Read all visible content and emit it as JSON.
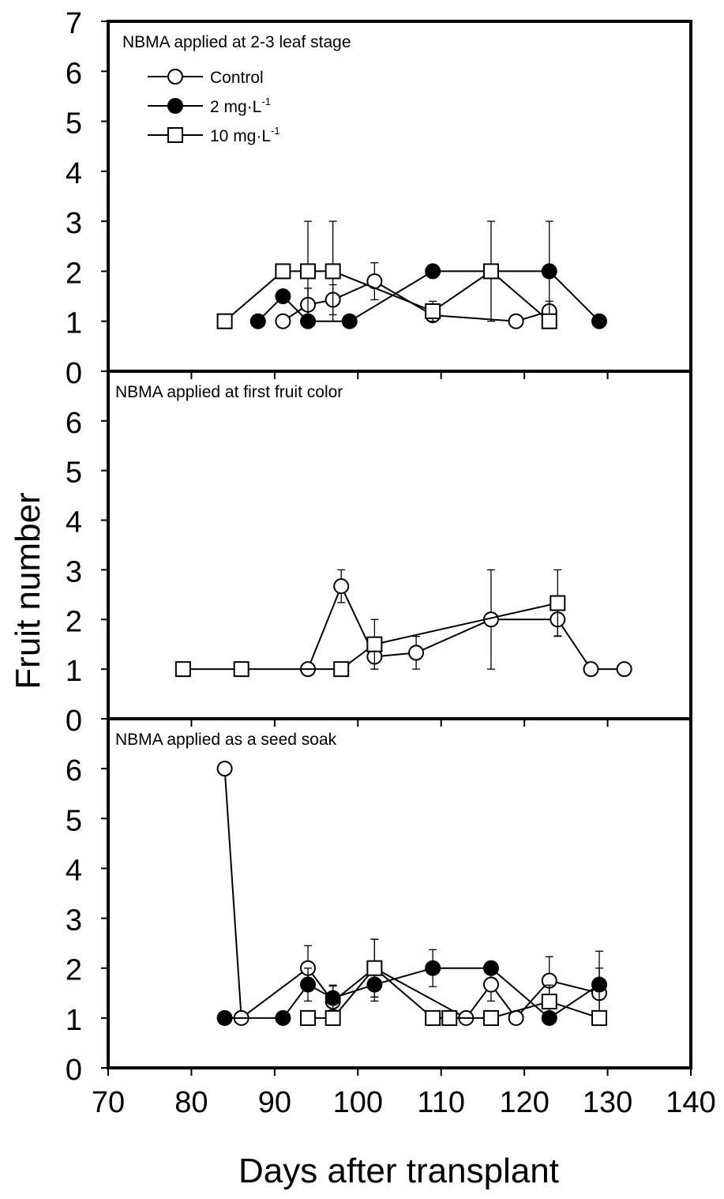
{
  "figure": {
    "ylabel": "Fruit number",
    "xlabel": "Days after transplant",
    "x_ticks": [
      "70",
      "80",
      "90",
      "100",
      "110",
      "120",
      "130",
      "140"
    ],
    "legend": [
      {
        "label": "Control",
        "marker": "open-circle"
      },
      {
        "label": "2 mg·L",
        "sup": "-1",
        "marker": "filled-circle"
      },
      {
        "label": "10 mg·L",
        "sup": "-1",
        "marker": "open-square"
      }
    ]
  },
  "chart_data": [
    {
      "type": "line",
      "title": "NBMA applied at 2-3 leaf stage",
      "xlim": [
        70,
        140
      ],
      "ylim": [
        0,
        7
      ],
      "y_ticks": [
        "0",
        "1",
        "2",
        "3",
        "4",
        "5",
        "6",
        "7"
      ],
      "legend_position": "top-left",
      "series": [
        {
          "name": "Control",
          "marker": "open-circle",
          "points": [
            {
              "x": 91,
              "y": 1
            },
            {
              "x": 94,
              "y": 1.33,
              "err": 0.33
            },
            {
              "x": 97,
              "y": 1.43,
              "err": 0.3
            },
            {
              "x": 102,
              "y": 1.8,
              "err": 0.37
            },
            {
              "x": 109,
              "y": 1.12,
              "err": 0.12
            },
            {
              "x": 119,
              "y": 1
            },
            {
              "x": 123,
              "y": 1.2,
              "err": 0.2
            }
          ]
        },
        {
          "name": "2 mg·L-1",
          "marker": "filled-circle",
          "points": [
            {
              "x": 88,
              "y": 1
            },
            {
              "x": 91,
              "y": 1.5
            },
            {
              "x": 94,
              "y": 1
            },
            {
              "x": 99,
              "y": 1
            },
            {
              "x": 109,
              "y": 2
            },
            {
              "x": 116,
              "y": 2
            },
            {
              "x": 123,
              "y": 2,
              "err": 1
            },
            {
              "x": 129,
              "y": 1
            }
          ]
        },
        {
          "name": "10 mg·L-1",
          "marker": "open-square",
          "points": [
            {
              "x": 84,
              "y": 1
            },
            {
              "x": 91,
              "y": 2
            },
            {
              "x": 94,
              "y": 2,
              "err": 1
            },
            {
              "x": 97,
              "y": 2,
              "err": 1
            },
            {
              "x": 109,
              "y": 1.2,
              "err": 0.2
            },
            {
              "x": 116,
              "y": 2,
              "err": 1
            },
            {
              "x": 123,
              "y": 1
            }
          ]
        }
      ]
    },
    {
      "type": "line",
      "title": "NBMA applied at first fruit color",
      "xlim": [
        70,
        140
      ],
      "ylim": [
        0,
        7
      ],
      "y_ticks": [
        "0",
        "1",
        "2",
        "3",
        "4",
        "5",
        "6",
        ""
      ],
      "series": [
        {
          "name": "Control",
          "marker": "open-circle",
          "points": [
            {
              "x": 94,
              "y": 1
            },
            {
              "x": 98,
              "y": 2.67,
              "err": 0.33
            },
            {
              "x": 102,
              "y": 1.25,
              "err": 0.25
            },
            {
              "x": 107,
              "y": 1.33,
              "err": 0.33
            },
            {
              "x": 116,
              "y": 2,
              "err": 1
            },
            {
              "x": 124,
              "y": 2,
              "err": 0.33
            },
            {
              "x": 128,
              "y": 1
            },
            {
              "x": 132,
              "y": 1
            }
          ]
        },
        {
          "name": "10 mg·L-1",
          "marker": "open-square",
          "points": [
            {
              "x": 79,
              "y": 1
            },
            {
              "x": 86,
              "y": 1
            },
            {
              "x": 98,
              "y": 1
            },
            {
              "x": 102,
              "y": 1.5,
              "err": 0.5
            },
            {
              "x": 124,
              "y": 2.33,
              "err": 0.67
            }
          ]
        }
      ]
    },
    {
      "type": "line",
      "title": "NBMA applied as a seed soak",
      "xlim": [
        70,
        140
      ],
      "ylim": [
        0,
        7
      ],
      "y_ticks": [
        "0",
        "1",
        "2",
        "3",
        "4",
        "5",
        "6",
        ""
      ],
      "series": [
        {
          "name": "Control",
          "marker": "open-circle",
          "points": [
            {
              "x": 84,
              "y": 6
            },
            {
              "x": 86,
              "y": 1
            },
            {
              "x": 94,
              "y": 2,
              "err": 0.45
            },
            {
              "x": 97,
              "y": 1.33,
              "err": 0.33
            },
            {
              "x": 102,
              "y": 2,
              "err": 0.58
            },
            {
              "x": 113,
              "y": 1
            },
            {
              "x": 116,
              "y": 1.67,
              "err": 0.33
            },
            {
              "x": 119,
              "y": 1
            },
            {
              "x": 123,
              "y": 1.75,
              "err": 0.48
            },
            {
              "x": 129,
              "y": 1.5,
              "err": 0.5
            }
          ]
        },
        {
          "name": "2 mg·L-1",
          "marker": "filled-circle",
          "points": [
            {
              "x": 84,
              "y": 1
            },
            {
              "x": 91,
              "y": 1
            },
            {
              "x": 94,
              "y": 1.67,
              "err": 0.33
            },
            {
              "x": 97,
              "y": 1.4,
              "err": 0.24
            },
            {
              "x": 102,
              "y": 1.67,
              "err": 0.33
            },
            {
              "x": 109,
              "y": 2,
              "err": 0.37
            },
            {
              "x": 116,
              "y": 2
            },
            {
              "x": 123,
              "y": 1
            },
            {
              "x": 129,
              "y": 1.67,
              "err": 0.67
            }
          ]
        },
        {
          "name": "10 mg·L-1",
          "marker": "open-square",
          "points": [
            {
              "x": 94,
              "y": 1
            },
            {
              "x": 97,
              "y": 1
            },
            {
              "x": 102,
              "y": 2,
              "err": 0.58
            },
            {
              "x": 109,
              "y": 1
            },
            {
              "x": 111,
              "y": 1
            },
            {
              "x": 116,
              "y": 1
            },
            {
              "x": 123,
              "y": 1.33,
              "err": 0.33
            },
            {
              "x": 129,
              "y": 1
            }
          ]
        }
      ]
    }
  ]
}
